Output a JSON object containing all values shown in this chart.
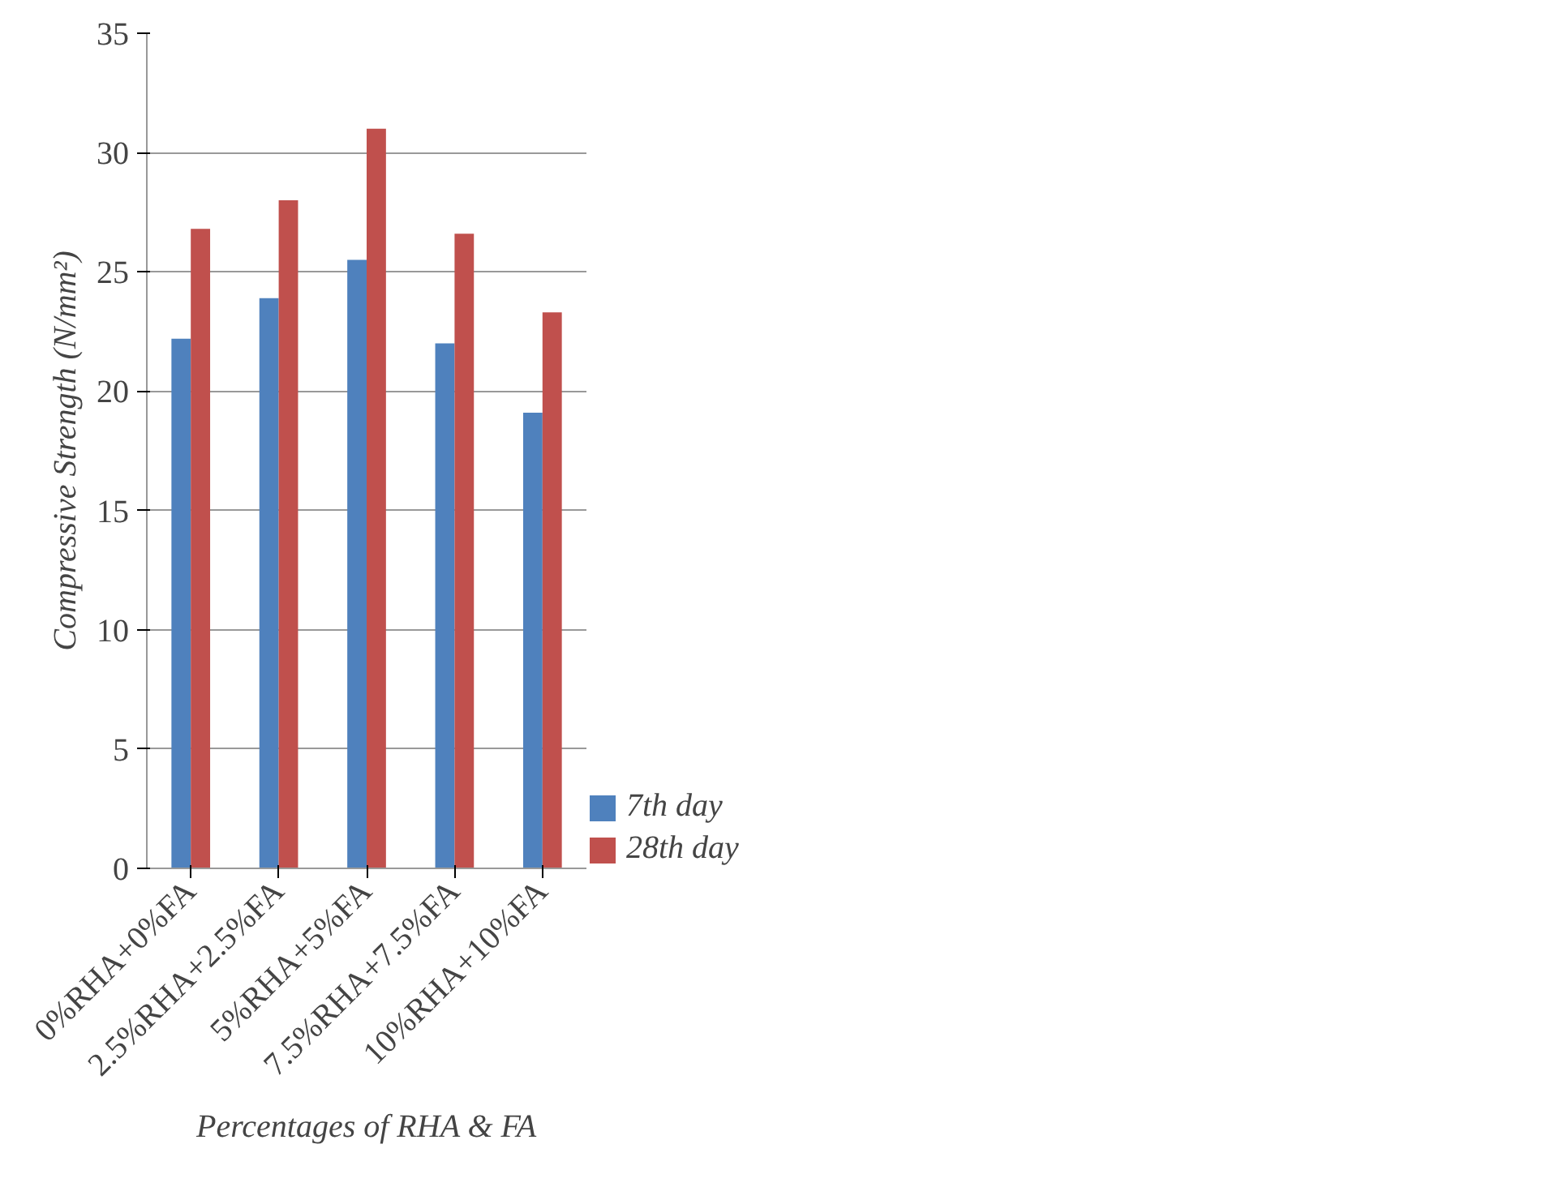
{
  "chart_data": {
    "type": "bar",
    "xlabel": "Percentages of RHA & FA",
    "ylabel": "Compressive Strength (N/mm²)",
    "categories": [
      "0%RHA+0%FA",
      "2.5%RHA+2.5%FA",
      "5%RHA+5%FA",
      "7.5%RHA+7.5%FA",
      "10%RHA+10%FA"
    ],
    "series": [
      {
        "name": "7th day",
        "color": "#4f81bd",
        "values": [
          22.2,
          23.9,
          25.5,
          22.0,
          19.1
        ]
      },
      {
        "name": "28th day",
        "color": "#c0504d",
        "values": [
          26.8,
          28.0,
          31.0,
          26.6,
          23.3
        ]
      }
    ],
    "ylim": [
      0,
      35
    ],
    "yticks": [
      0,
      5,
      10,
      15,
      20,
      25,
      30,
      35
    ],
    "grid": "y",
    "legend": "bottom right"
  }
}
